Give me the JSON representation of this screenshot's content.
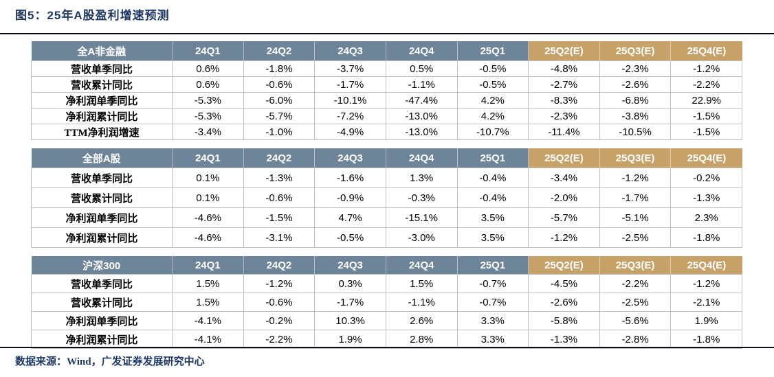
{
  "title": "图5：25年A股盈利增速预测",
  "footer": "数据来源：Wind，广发证券发展研究中心",
  "colors": {
    "navy": "#1F3864",
    "header_blue": "#6D8499",
    "header_tan": "#C6A269",
    "grid": "#BFBFBF"
  },
  "columns": [
    "24Q1",
    "24Q2",
    "24Q3",
    "24Q4",
    "25Q1",
    "25Q2(E)",
    "25Q3(E)",
    "25Q4(E)"
  ],
  "forecast_column_start_index": 5,
  "tables": [
    {
      "group": "全A非金融",
      "rows": [
        {
          "label": "营收单季同比",
          "values": [
            "0.6%",
            "-1.8%",
            "-3.7%",
            "0.5%",
            "-0.5%",
            "-4.8%",
            "-2.3%",
            "-1.2%"
          ]
        },
        {
          "label": "营收累计同比",
          "values": [
            "0.6%",
            "-0.6%",
            "-1.7%",
            "-1.1%",
            "-0.5%",
            "-2.7%",
            "-2.6%",
            "-2.2%"
          ]
        },
        {
          "label": "净利润单季同比",
          "values": [
            "-5.3%",
            "-6.0%",
            "-10.1%",
            "-47.4%",
            "4.2%",
            "-8.3%",
            "-6.8%",
            "22.9%"
          ]
        },
        {
          "label": "净利润累计同比",
          "values": [
            "-5.3%",
            "-5.7%",
            "-7.2%",
            "-13.0%",
            "4.2%",
            "-2.3%",
            "-3.8%",
            "-1.5%"
          ]
        },
        {
          "label": "TTM净利润增速",
          "values": [
            "-3.4%",
            "-1.0%",
            "-4.9%",
            "-13.0%",
            "-10.7%",
            "-11.4%",
            "-10.5%",
            "-1.5%"
          ]
        }
      ]
    },
    {
      "group": "全部A股",
      "rows": [
        {
          "label": "营收单季同比",
          "values": [
            "0.1%",
            "-1.3%",
            "-1.6%",
            "1.3%",
            "-0.4%",
            "-3.4%",
            "-1.2%",
            "-0.2%"
          ]
        },
        {
          "label": "营收累计同比",
          "values": [
            "0.1%",
            "-0.6%",
            "-0.9%",
            "-0.3%",
            "-0.4%",
            "-2.0%",
            "-1.7%",
            "-1.3%"
          ]
        },
        {
          "label": "净利润单季同比",
          "values": [
            "-4.6%",
            "-1.5%",
            "4.7%",
            "-15.1%",
            "3.5%",
            "-5.7%",
            "-5.1%",
            "2.3%"
          ]
        },
        {
          "label": "净利润累计同比",
          "values": [
            "-4.6%",
            "-3.1%",
            "-0.5%",
            "-3.0%",
            "3.5%",
            "-1.2%",
            "-2.5%",
            "-1.8%"
          ]
        }
      ]
    },
    {
      "group": "沪深300",
      "rows": [
        {
          "label": "营收单季同比",
          "values": [
            "1.5%",
            "-1.2%",
            "0.3%",
            "1.5%",
            "-0.7%",
            "-4.5%",
            "-2.2%",
            "-1.2%"
          ]
        },
        {
          "label": "营收累计同比",
          "values": [
            "1.5%",
            "-0.6%",
            "-1.7%",
            "-1.1%",
            "-0.7%",
            "-2.6%",
            "-2.5%",
            "-2.1%"
          ]
        },
        {
          "label": "净利润单季同比",
          "values": [
            "-4.1%",
            "-0.2%",
            "10.3%",
            "2.6%",
            "3.3%",
            "-5.8%",
            "-5.6%",
            "1.9%"
          ]
        },
        {
          "label": "净利润累计同比",
          "values": [
            "-4.1%",
            "-2.2%",
            "1.9%",
            "2.8%",
            "3.3%",
            "-1.3%",
            "-2.8%",
            "-1.8%"
          ]
        }
      ]
    }
  ]
}
